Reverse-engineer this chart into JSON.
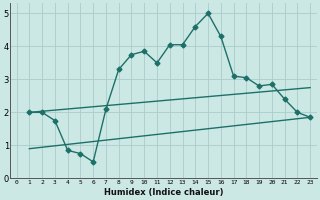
{
  "xlabel": "Humidex (Indice chaleur)",
  "background_color": "#cce8e5",
  "grid_color": "#aaccca",
  "line_color": "#1d7068",
  "xlim": [
    -0.5,
    23.5
  ],
  "ylim": [
    0,
    5.3
  ],
  "x_ticks": [
    0,
    1,
    2,
    3,
    4,
    5,
    6,
    7,
    8,
    9,
    10,
    11,
    12,
    13,
    14,
    15,
    16,
    17,
    18,
    19,
    20,
    21,
    22,
    23
  ],
  "y_ticks": [
    0,
    1,
    2,
    3,
    4,
    5
  ],
  "series1_x": [
    1,
    2,
    3,
    4,
    5,
    6,
    7,
    8,
    9,
    10,
    11,
    12,
    13,
    14,
    15,
    16,
    17,
    18,
    19,
    20,
    21,
    22,
    23
  ],
  "series1_y": [
    2.0,
    2.0,
    1.75,
    0.85,
    0.75,
    0.5,
    2.1,
    3.3,
    3.75,
    3.85,
    3.5,
    4.05,
    4.05,
    4.6,
    5.0,
    4.3,
    3.1,
    3.05,
    2.8,
    2.85,
    2.4,
    2.0,
    1.85
  ],
  "series2_x": [
    1,
    23
  ],
  "series2_y": [
    2.0,
    2.75
  ],
  "series3_x": [
    1,
    23
  ],
  "series3_y": [
    0.9,
    1.85
  ],
  "markersize": 2.5,
  "linewidth": 1.0
}
